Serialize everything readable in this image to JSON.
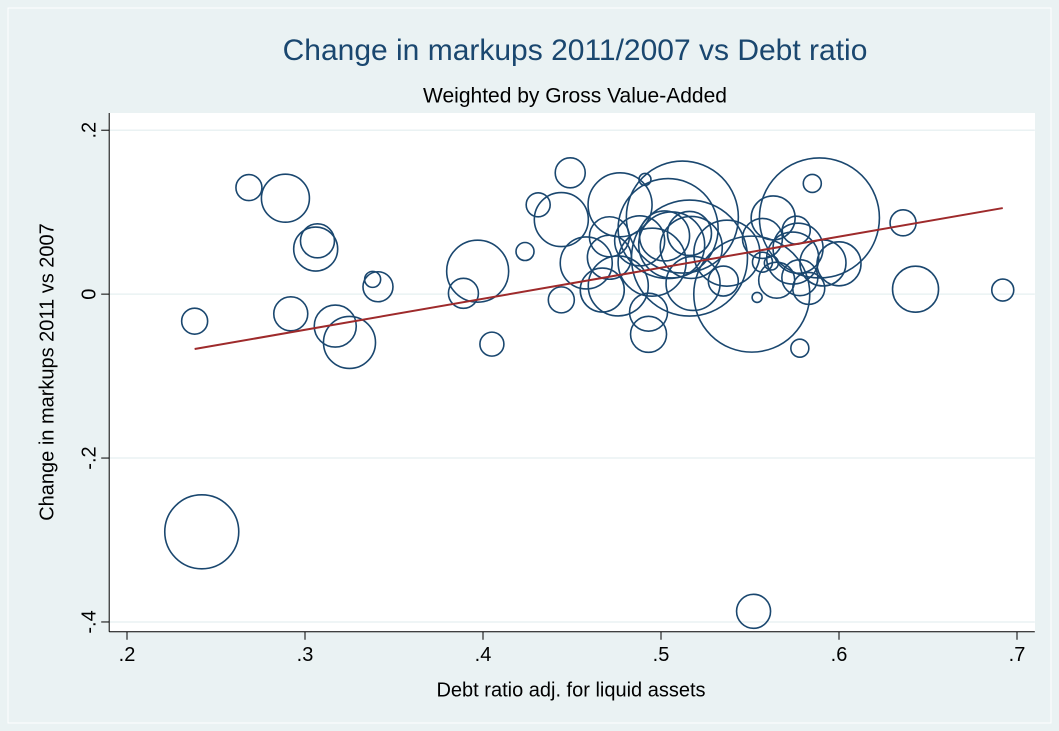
{
  "chart_data": {
    "type": "scatter",
    "title": "Change in markups 2011/2007 vs Debt ratio",
    "subtitle": "Weighted by Gross Value-Added",
    "x_label": "Debt ratio adj. for liquid assets",
    "y_label": "Change in markups 2011 vs 2007",
    "color": "#1a476f",
    "x": [
      0.2685,
      0.289,
      0.307,
      0.306,
      0.238,
      0.292,
      0.317,
      0.325,
      0.338,
      0.341,
      0.389,
      0.397,
      0.242,
      0.405,
      0.4236,
      0.431,
      0.449,
      0.444,
      0.444,
      0.458,
      0.467,
      0.471,
      0.477,
      0.476,
      0.471,
      0.491,
      0.488,
      0.493,
      0.493,
      0.495,
      0.502,
      0.506,
      0.504,
      0.512,
      0.516,
      0.517,
      0.518,
      0.535,
      0.537,
      0.516,
      0.551,
      0.554,
      0.557,
      0.562,
      0.563,
      0.557,
      0.565,
      0.574,
      0.576,
      0.585,
      0.583,
      0.578,
      0.577,
      0.578,
      0.589,
      0.591,
      0.6,
      0.636,
      0.643,
      0.692,
      0.552
    ],
    "values": [
      0.13,
      0.117,
      0.065,
      0.055,
      -0.033,
      -0.024,
      -0.039,
      -0.059,
      0.018,
      0.009,
      0.001,
      0.028,
      -0.29,
      -0.061,
      0.052,
      0.109,
      0.148,
      0.091,
      -0.007,
      0.038,
      0.005,
      0.07,
      0.109,
      0.01,
      0.045,
      0.14,
      0.065,
      -0.022,
      -0.049,
      0.039,
      0.071,
      0.06,
      0.08,
      0.094,
      0.074,
      0.057,
      0.013,
      0.016,
      0.05,
      0.044,
      0.0,
      -0.004,
      0.039,
      0.038,
      0.093,
      0.068,
      0.017,
      0.044,
      0.078,
      0.135,
      0.007,
      -0.066,
      0.056,
      0.02,
      0.093,
      0.038,
      0.037,
      0.087,
      0.006,
      0.005,
      -0.387
    ],
    "sizes": [
      1.69,
      5.76,
      2.89,
      4.84,
      1.69,
      2.89,
      4.41,
      6.76,
      0.64,
      2.25,
      2.25,
      9.61,
      13.69,
      1.44,
      0.81,
      1.44,
      2.25,
      7.29,
      1.69,
      6.76,
      4.84,
      4.0,
      10.24,
      9.0,
      4.84,
      0.36,
      6.25,
      3.61,
      3.24,
      11.56,
      6.25,
      10.89,
      25,
      31.36,
      4.84,
      9.61,
      7.29,
      2.25,
      10.89,
      33.64,
      33.64,
      0.25,
      1.0,
      0.49,
      4.84,
      4.0,
      3.24,
      6.76,
      1.96,
      0.81,
      2.56,
      0.81,
      6.25,
      3.24,
      36,
      5.29,
      4.84,
      1.69,
      5.29,
      1.21,
      2.89
    ],
    "fit_line": {
      "x": [
        0.238,
        0.692
      ],
      "y": [
        -0.067,
        0.105
      ],
      "color": "#9e2a2b"
    },
    "xlim": [
      0.19,
      0.71
    ],
    "ylim": [
      -0.412,
      0.221
    ],
    "xticks": [
      {
        "value": 0.2,
        "label": ".2"
      },
      {
        "value": 0.3,
        "label": ".3"
      },
      {
        "value": 0.4,
        "label": ".4"
      },
      {
        "value": 0.5,
        "label": ".5"
      },
      {
        "value": 0.6,
        "label": ".6"
      },
      {
        "value": 0.7,
        "label": ".7"
      }
    ],
    "yticks": [
      {
        "value": -0.4,
        "label": "-.4"
      },
      {
        "value": -0.2,
        "label": "-.2"
      },
      0,
      {
        "value": 0.2,
        "label": ".2"
      }
    ],
    "grid": true
  }
}
